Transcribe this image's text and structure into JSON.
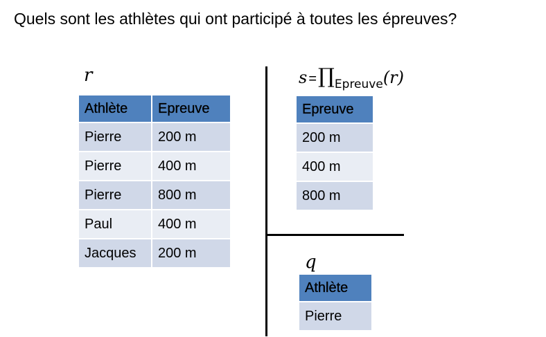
{
  "question": "Quels sont les athlètes qui ont participé à toutes les épreuves?",
  "relation_r": {
    "name": "r",
    "headers": [
      "Athlète",
      "Epreuve"
    ],
    "rows": [
      [
        "Pierre",
        "200 m"
      ],
      [
        "Pierre",
        "400 m"
      ],
      [
        "Pierre",
        "800 m"
      ],
      [
        "Paul",
        "400 m"
      ],
      [
        "Jacques",
        "200 m"
      ]
    ]
  },
  "formula_s": {
    "lhs": "s",
    "eq": "=",
    "operator": "∏",
    "subscript": "Epreuve",
    "argument": "(r)"
  },
  "relation_s": {
    "headers": [
      "Epreuve"
    ],
    "rows": [
      [
        "200 m"
      ],
      [
        "400 m"
      ],
      [
        "800 m"
      ]
    ]
  },
  "relation_q": {
    "name": "q",
    "headers": [
      "Athlète"
    ],
    "rows": [
      [
        "Pierre"
      ]
    ]
  },
  "colors": {
    "header_bg": "#4f81bd",
    "row_odd_bg": "#d0d8e8",
    "row_even_bg": "#e9edf4"
  }
}
